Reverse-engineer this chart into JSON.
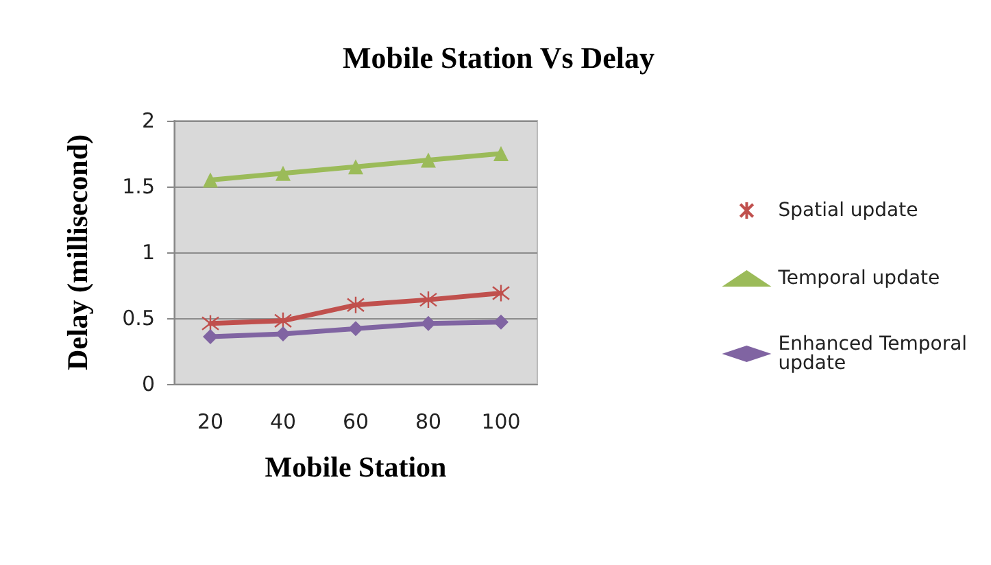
{
  "chart_data": {
    "type": "line",
    "title": "Mobile Station Vs Delay",
    "xlabel": "Mobile Station",
    "ylabel": "Delay (millisecond)",
    "categories": [
      "20",
      "40",
      "60",
      "80",
      "100"
    ],
    "series": [
      {
        "name": "Spatial update",
        "color": "#c0504d",
        "marker": "cross",
        "values": [
          0.46,
          0.48,
          0.6,
          0.64,
          0.69
        ]
      },
      {
        "name": "Temporal update",
        "color": "#9bbb59",
        "marker": "triangle",
        "values": [
          1.55,
          1.6,
          1.65,
          1.7,
          1.75
        ]
      },
      {
        "name": "Enhanced Temporal update",
        "color": "#8064a2",
        "marker": "diamond",
        "values": [
          0.36,
          0.38,
          0.42,
          0.46,
          0.47
        ]
      }
    ],
    "ylim": [
      0,
      2
    ],
    "yticks": [
      0,
      0.5,
      1,
      1.5,
      2
    ],
    "grid": "y",
    "legend": "right",
    "line_style": "solid"
  }
}
